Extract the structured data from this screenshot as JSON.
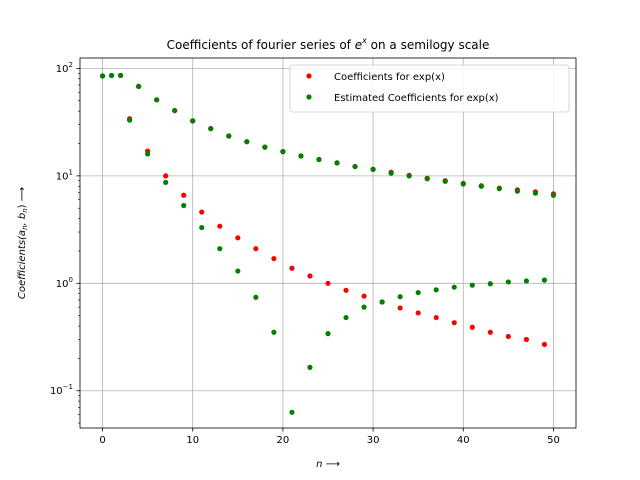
{
  "chart_data": {
    "type": "scatter",
    "title": "Coefficients of fourier series of e^x on a semilogy scale",
    "title_parts": {
      "main": "Coefficients of fourier series of ",
      "base": "e",
      "sup": "x",
      "tail": " on a semilogy scale"
    },
    "xlabel": "n ⟶",
    "ylabel": "Coefficients(a_n, b_n) ⟶",
    "ylabel_parts": {
      "main": "Coefficients(",
      "a": "a",
      "a_sub": "n",
      "sep": ", ",
      "b": "b",
      "b_sub": "n",
      "tail": ") ⟶"
    },
    "x_scale": "linear",
    "y_scale": "log",
    "xlim": [
      -2.5,
      52.5
    ],
    "ylim": [
      0.045,
      125
    ],
    "x_ticks": [
      0,
      10,
      20,
      30,
      40,
      50
    ],
    "x_tick_labels": [
      "0",
      "10",
      "20",
      "30",
      "40",
      "50"
    ],
    "y_ticks": [
      0.1,
      1,
      10,
      100
    ],
    "y_tick_labels": [
      {
        "base": "10",
        "exp": "−1"
      },
      {
        "base": "10",
        "exp": "0"
      },
      {
        "base": "10",
        "exp": "1"
      },
      {
        "base": "10",
        "exp": "2"
      }
    ],
    "grid": true,
    "legend_position": "top-right",
    "series": [
      {
        "name": "Coefficients for exp(x)",
        "color": "#ff0000",
        "points": [
          [
            0,
            85
          ],
          [
            1,
            86
          ],
          [
            2,
            86
          ],
          [
            3,
            34
          ],
          [
            4,
            68
          ],
          [
            5,
            17
          ],
          [
            6,
            51
          ],
          [
            7,
            10.0
          ],
          [
            8,
            40.5
          ],
          [
            9,
            6.6
          ],
          [
            10,
            32.5
          ],
          [
            11,
            4.6
          ],
          [
            12,
            27.5
          ],
          [
            13,
            3.4
          ],
          [
            14,
            23.5
          ],
          [
            15,
            2.65
          ],
          [
            16,
            20.8
          ],
          [
            17,
            2.1
          ],
          [
            18,
            18.5
          ],
          [
            19,
            1.7
          ],
          [
            20,
            16.8
          ],
          [
            21,
            1.38
          ],
          [
            22,
            15.3
          ],
          [
            23,
            1.17
          ],
          [
            24,
            14.2
          ],
          [
            25,
            1.0
          ],
          [
            26,
            13.2
          ],
          [
            27,
            0.86
          ],
          [
            28,
            12.2
          ],
          [
            29,
            0.76
          ],
          [
            30,
            11.5
          ],
          [
            31,
            0.67
          ],
          [
            32,
            10.8
          ],
          [
            33,
            0.59
          ],
          [
            34,
            10.1
          ],
          [
            35,
            0.53
          ],
          [
            36,
            9.5
          ],
          [
            37,
            0.48
          ],
          [
            38,
            9.0
          ],
          [
            39,
            0.43
          ],
          [
            40,
            8.5
          ],
          [
            41,
            0.39
          ],
          [
            42,
            8.1
          ],
          [
            43,
            0.35
          ],
          [
            44,
            7.7
          ],
          [
            45,
            0.32
          ],
          [
            46,
            7.4
          ],
          [
            47,
            0.3
          ],
          [
            48,
            7.1
          ],
          [
            49,
            0.27
          ],
          [
            50,
            6.8
          ]
        ]
      },
      {
        "name": "Estimated Coefficients for exp(x)",
        "color": "#008000",
        "points": [
          [
            0,
            85
          ],
          [
            1,
            86
          ],
          [
            2,
            86
          ],
          [
            3,
            33
          ],
          [
            4,
            68
          ],
          [
            5,
            16
          ],
          [
            6,
            51
          ],
          [
            7,
            8.7
          ],
          [
            8,
            40.5
          ],
          [
            9,
            5.3
          ],
          [
            10,
            32.5
          ],
          [
            11,
            3.3
          ],
          [
            12,
            27.5
          ],
          [
            13,
            2.1
          ],
          [
            14,
            23.5
          ],
          [
            15,
            1.3
          ],
          [
            16,
            20.8
          ],
          [
            17,
            0.74
          ],
          [
            18,
            18.5
          ],
          [
            19,
            0.35
          ],
          [
            20,
            16.8
          ],
          [
            21,
            0.063
          ],
          [
            22,
            15.3
          ],
          [
            23,
            0.165
          ],
          [
            24,
            14.2
          ],
          [
            25,
            0.34
          ],
          [
            26,
            13.2
          ],
          [
            27,
            0.48
          ],
          [
            28,
            12.2
          ],
          [
            29,
            0.6
          ],
          [
            30,
            11.5
          ],
          [
            31,
            0.67
          ],
          [
            32,
            10.6
          ],
          [
            33,
            0.75
          ],
          [
            34,
            10.0
          ],
          [
            35,
            0.82
          ],
          [
            36,
            9.4
          ],
          [
            37,
            0.87
          ],
          [
            38,
            8.9
          ],
          [
            39,
            0.92
          ],
          [
            40,
            8.4
          ],
          [
            41,
            0.96
          ],
          [
            42,
            8.0
          ],
          [
            43,
            0.99
          ],
          [
            44,
            7.6
          ],
          [
            45,
            1.03
          ],
          [
            46,
            7.2
          ],
          [
            47,
            1.05
          ],
          [
            48,
            6.9
          ],
          [
            49,
            1.07
          ],
          [
            50,
            6.6
          ]
        ]
      }
    ]
  }
}
